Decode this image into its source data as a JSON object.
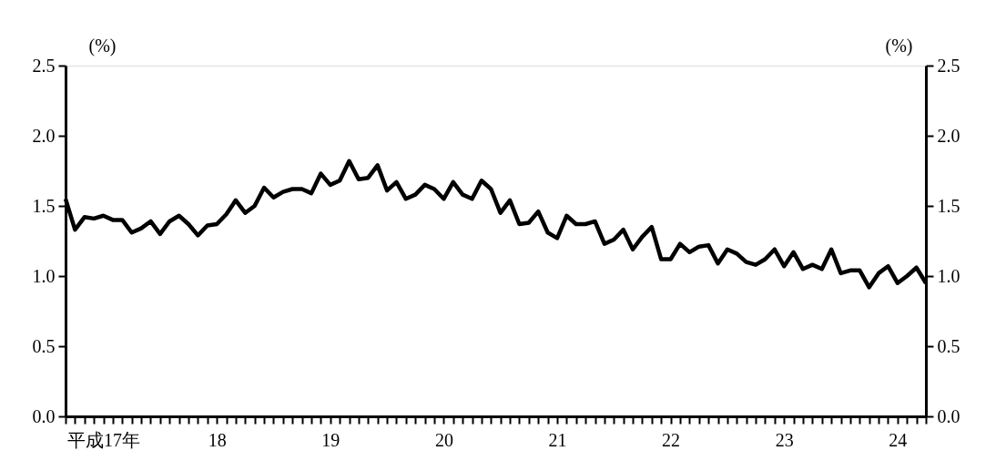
{
  "chart_data": {
    "type": "line",
    "ylabel": "(%)",
    "y2label": "(%)",
    "categories": [
      null,
      null,
      null,
      null,
      "平成17年",
      null,
      null,
      null,
      null,
      null,
      null,
      null,
      null,
      null,
      null,
      null,
      "18",
      null,
      null,
      null,
      null,
      null,
      null,
      null,
      null,
      null,
      null,
      null,
      "19",
      null,
      null,
      null,
      null,
      null,
      null,
      null,
      null,
      null,
      null,
      null,
      "20",
      null,
      null,
      null,
      null,
      null,
      null,
      null,
      null,
      null,
      null,
      null,
      "21",
      null,
      null,
      null,
      null,
      null,
      null,
      null,
      null,
      null,
      null,
      null,
      "22",
      null,
      null,
      null,
      null,
      null,
      null,
      null,
      null,
      null,
      null,
      null,
      "23",
      null,
      null,
      null,
      null,
      null,
      null,
      null,
      null,
      null,
      null,
      null,
      "24",
      null,
      null,
      null
    ],
    "series": [
      {
        "color": "#000000",
        "values": [
          1.55,
          1.33,
          1.42,
          1.41,
          1.43,
          1.4,
          1.4,
          1.31,
          1.34,
          1.39,
          1.3,
          1.39,
          1.43,
          1.37,
          1.29,
          1.36,
          1.37,
          1.44,
          1.54,
          1.45,
          1.5,
          1.63,
          1.56,
          1.6,
          1.62,
          1.62,
          1.59,
          1.73,
          1.65,
          1.68,
          1.82,
          1.69,
          1.7,
          1.79,
          1.61,
          1.67,
          1.55,
          1.58,
          1.65,
          1.62,
          1.55,
          1.67,
          1.58,
          1.55,
          1.68,
          1.62,
          1.45,
          1.54,
          1.37,
          1.38,
          1.46,
          1.31,
          1.27,
          1.43,
          1.37,
          1.37,
          1.39,
          1.23,
          1.26,
          1.33,
          1.19,
          1.28,
          1.35,
          1.12,
          1.12,
          1.23,
          1.17,
          1.21,
          1.22,
          1.09,
          1.19,
          1.16,
          1.1,
          1.08,
          1.12,
          1.19,
          1.07,
          1.17,
          1.05,
          1.08,
          1.05,
          1.19,
          1.02,
          1.04,
          1.04,
          0.92,
          1.02,
          1.07,
          0.95,
          1.0,
          1.06,
          0.95
        ]
      }
    ],
    "ylim": [
      0,
      2.5
    ],
    "yticks": [
      {
        "value": 0,
        "label": "0.0"
      },
      {
        "value": 0.5,
        "label": "0.5"
      },
      {
        "value": 1,
        "label": "1.0"
      },
      {
        "value": 1.5,
        "label": "1.5"
      },
      {
        "value": 2,
        "label": "2.0"
      },
      {
        "value": 2.5,
        "label": "2.5"
      }
    ],
    "y2lim": [
      0,
      2.5
    ],
    "y2ticks": [
      {
        "value": 0,
        "label": "0.0"
      },
      {
        "value": 0.5,
        "label": "0.5"
      },
      {
        "value": 1,
        "label": "1.0"
      },
      {
        "value": 1.5,
        "label": "1.5"
      },
      {
        "value": 2,
        "label": "2.0"
      },
      {
        "value": 2.5,
        "label": "2.5"
      }
    ],
    "grid": false,
    "marker": "none",
    "line_style": "solid"
  }
}
